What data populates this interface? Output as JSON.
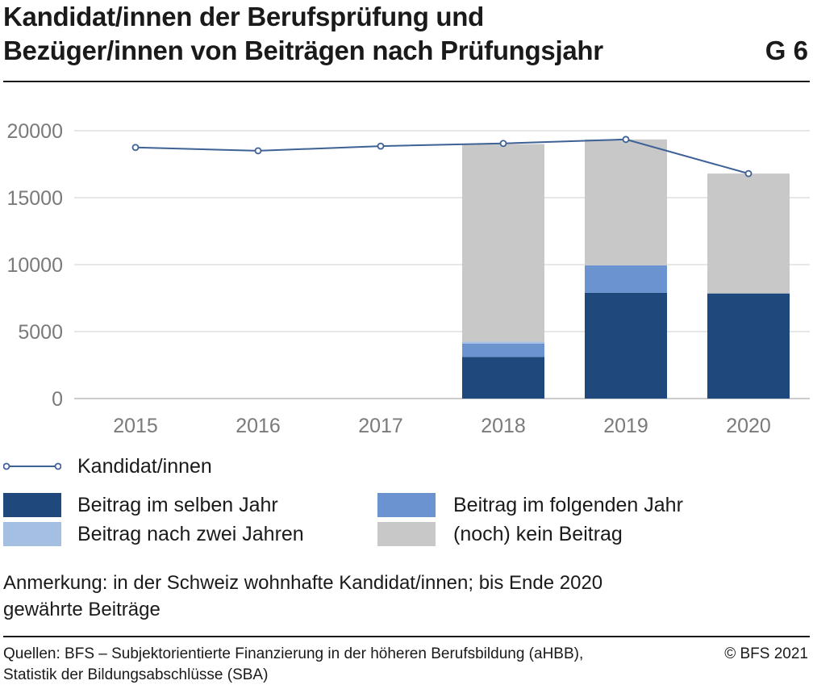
{
  "header": {
    "title_line1": "Kandidat/innen der Berufsprüfung und",
    "title_line2": "Bezüger/innen von Beiträgen nach Prüfungsjahr",
    "figure_label": "G 6"
  },
  "chart_data": {
    "type": "bar",
    "stacked": true,
    "categories": [
      "2015",
      "2016",
      "2017",
      "2018",
      "2019",
      "2020"
    ],
    "ylim": [
      0,
      20000
    ],
    "yticks": [
      0,
      5000,
      10000,
      15000,
      20000
    ],
    "grid": true,
    "legend_position": "bottom",
    "series": [
      {
        "name": "Beitrag im selben Jahr",
        "kind": "bar",
        "color": "#1f497d",
        "values": [
          null,
          null,
          null,
          3100,
          7900,
          7850
        ]
      },
      {
        "name": "Beitrag im folgenden Jahr",
        "kind": "bar",
        "color": "#6a93cf",
        "values": [
          null,
          null,
          null,
          1000,
          2050,
          0
        ]
      },
      {
        "name": "Beitrag nach zwei Jahren",
        "kind": "bar",
        "color": "#a5bfe3",
        "values": [
          null,
          null,
          null,
          150,
          0,
          0
        ]
      },
      {
        "name": "(noch) kein Beitrag",
        "kind": "bar",
        "color": "#c8c8c8",
        "values": [
          null,
          null,
          null,
          14750,
          9400,
          8950
        ]
      },
      {
        "name": "Kandidat/innen",
        "kind": "line",
        "color": "#3e6196",
        "values": [
          18750,
          18500,
          18850,
          19050,
          19350,
          16800
        ]
      }
    ]
  },
  "note": {
    "line1": "Anmerkung: in der Schweiz wohnhafte Kandidat/innen; bis Ende 2020",
    "line2": "gewährte Beiträge"
  },
  "footer": {
    "source_line1": "Quellen: BFS – Subjektorientierte Finanzierung in der höheren Berufsbildung (aHBB),",
    "source_line2": "Statistik der Bildungsabschlüsse (SBA)",
    "copyright": "© BFS 2021"
  }
}
